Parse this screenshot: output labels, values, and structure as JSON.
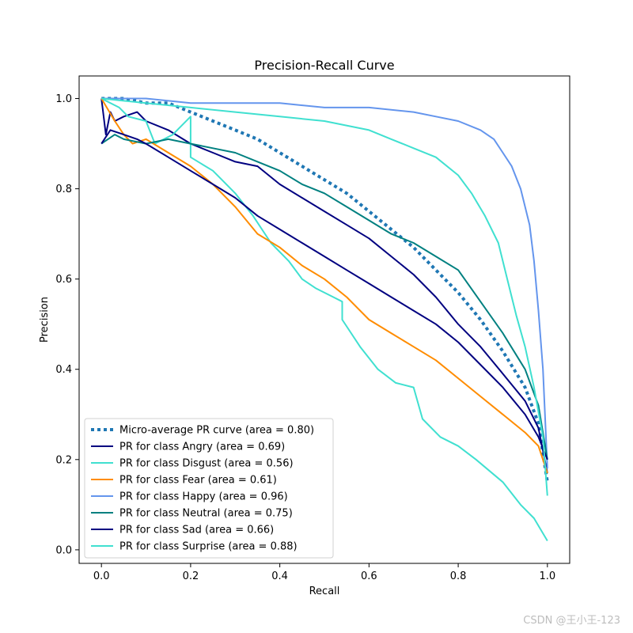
{
  "watermark": "CSDN @王小王-123",
  "chart_data": {
    "type": "line",
    "title": "Precision-Recall Curve",
    "xlabel": "Recall",
    "ylabel": "Precision",
    "xlim": [
      -0.05,
      1.05
    ],
    "ylim": [
      -0.03,
      1.05
    ],
    "xticks": [
      0.0,
      0.2,
      0.4,
      0.6,
      0.8,
      1.0
    ],
    "yticks": [
      0.0,
      0.2,
      0.4,
      0.6,
      0.8,
      1.0
    ],
    "xtick_labels": [
      "0.0",
      "0.2",
      "0.4",
      "0.6",
      "0.8",
      "1.0"
    ],
    "ytick_labels": [
      "0.0",
      "0.2",
      "0.4",
      "0.6",
      "0.8",
      "1.0"
    ],
    "grid": false,
    "legend_position": "lower-left",
    "series": [
      {
        "name": "Micro-average PR curve (area = 0.80)",
        "color": "#1f77b4",
        "dash": "dotted",
        "x": [
          0.0,
          0.05,
          0.1,
          0.15,
          0.2,
          0.25,
          0.3,
          0.35,
          0.4,
          0.45,
          0.5,
          0.55,
          0.6,
          0.65,
          0.7,
          0.75,
          0.8,
          0.85,
          0.9,
          0.95,
          0.98,
          1.0
        ],
        "y": [
          1.0,
          1.0,
          0.99,
          0.99,
          0.97,
          0.95,
          0.93,
          0.91,
          0.88,
          0.85,
          0.82,
          0.79,
          0.75,
          0.71,
          0.67,
          0.62,
          0.57,
          0.51,
          0.44,
          0.36,
          0.28,
          0.15
        ]
      },
      {
        "name": "PR for class Angry (area = 0.69)",
        "color": "#000080",
        "dash": "solid",
        "x": [
          0.0,
          0.01,
          0.02,
          0.03,
          0.05,
          0.08,
          0.1,
          0.15,
          0.2,
          0.25,
          0.3,
          0.35,
          0.4,
          0.45,
          0.5,
          0.55,
          0.6,
          0.65,
          0.7,
          0.75,
          0.8,
          0.85,
          0.9,
          0.95,
          0.98,
          1.0
        ],
        "y": [
          1.0,
          0.92,
          0.97,
          0.95,
          0.96,
          0.97,
          0.95,
          0.93,
          0.9,
          0.88,
          0.86,
          0.85,
          0.81,
          0.78,
          0.75,
          0.72,
          0.69,
          0.65,
          0.61,
          0.56,
          0.5,
          0.45,
          0.39,
          0.33,
          0.27,
          0.17
        ]
      },
      {
        "name": "PR for class Disgust (area = 0.56)",
        "color": "#40e0d0",
        "dash": "solid",
        "x": [
          0.0,
          0.04,
          0.06,
          0.1,
          0.12,
          0.16,
          0.2,
          0.2,
          0.25,
          0.27,
          0.3,
          0.34,
          0.38,
          0.42,
          0.45,
          0.48,
          0.52,
          0.54,
          0.54,
          0.58,
          0.62,
          0.66,
          0.7,
          0.72,
          0.76,
          0.8,
          0.84,
          0.9,
          0.94,
          0.97,
          1.0
        ],
        "y": [
          1.0,
          0.98,
          0.96,
          0.95,
          0.9,
          0.92,
          0.96,
          0.87,
          0.84,
          0.82,
          0.79,
          0.74,
          0.68,
          0.64,
          0.6,
          0.58,
          0.56,
          0.55,
          0.51,
          0.45,
          0.4,
          0.37,
          0.36,
          0.29,
          0.25,
          0.23,
          0.2,
          0.15,
          0.1,
          0.07,
          0.02
        ]
      },
      {
        "name": "PR for class Fear (area = 0.61)",
        "color": "#ff8c00",
        "dash": "solid",
        "x": [
          0.0,
          0.03,
          0.05,
          0.07,
          0.1,
          0.15,
          0.2,
          0.25,
          0.3,
          0.35,
          0.4,
          0.45,
          0.5,
          0.55,
          0.6,
          0.65,
          0.7,
          0.75,
          0.8,
          0.85,
          0.9,
          0.95,
          0.98,
          1.0
        ],
        "y": [
          1.0,
          0.95,
          0.92,
          0.9,
          0.91,
          0.88,
          0.85,
          0.81,
          0.76,
          0.7,
          0.67,
          0.63,
          0.6,
          0.56,
          0.51,
          0.48,
          0.45,
          0.42,
          0.38,
          0.34,
          0.3,
          0.26,
          0.23,
          0.17
        ]
      },
      {
        "name": "PR for class Happy (area = 0.96)",
        "color": "#6495ed",
        "dash": "solid",
        "x": [
          0.0,
          0.1,
          0.2,
          0.3,
          0.4,
          0.5,
          0.6,
          0.7,
          0.75,
          0.8,
          0.85,
          0.88,
          0.9,
          0.92,
          0.94,
          0.96,
          0.97,
          0.98,
          0.99,
          1.0
        ],
        "y": [
          1.0,
          1.0,
          0.99,
          0.99,
          0.99,
          0.98,
          0.98,
          0.97,
          0.96,
          0.95,
          0.93,
          0.91,
          0.88,
          0.85,
          0.8,
          0.72,
          0.64,
          0.53,
          0.4,
          0.18
        ]
      },
      {
        "name": "PR for class Neutral (area = 0.75)",
        "color": "#008080",
        "dash": "solid",
        "x": [
          0.0,
          0.03,
          0.05,
          0.1,
          0.15,
          0.2,
          0.25,
          0.3,
          0.35,
          0.4,
          0.45,
          0.5,
          0.55,
          0.6,
          0.65,
          0.7,
          0.75,
          0.8,
          0.85,
          0.9,
          0.95,
          0.98,
          1.0
        ],
        "y": [
          0.9,
          0.92,
          0.91,
          0.9,
          0.91,
          0.9,
          0.89,
          0.88,
          0.86,
          0.84,
          0.81,
          0.79,
          0.76,
          0.73,
          0.7,
          0.68,
          0.65,
          0.62,
          0.55,
          0.48,
          0.4,
          0.32,
          0.2
        ]
      },
      {
        "name": "PR for class Sad (area = 0.66)",
        "color": "#000080",
        "dash": "solid",
        "x": [
          0.0,
          0.02,
          0.05,
          0.08,
          0.1,
          0.15,
          0.2,
          0.25,
          0.3,
          0.35,
          0.4,
          0.45,
          0.5,
          0.55,
          0.6,
          0.65,
          0.7,
          0.75,
          0.8,
          0.85,
          0.9,
          0.95,
          0.98,
          1.0
        ],
        "y": [
          0.9,
          0.93,
          0.92,
          0.91,
          0.9,
          0.87,
          0.84,
          0.81,
          0.78,
          0.74,
          0.71,
          0.68,
          0.65,
          0.62,
          0.59,
          0.56,
          0.53,
          0.5,
          0.46,
          0.41,
          0.36,
          0.3,
          0.25,
          0.2
        ]
      },
      {
        "name": "PR for class Surprise (area = 0.88)",
        "color": "#40e0d0",
        "dash": "solid",
        "x": [
          0.0,
          0.1,
          0.2,
          0.3,
          0.4,
          0.5,
          0.6,
          0.65,
          0.7,
          0.75,
          0.8,
          0.83,
          0.86,
          0.89,
          0.91,
          0.93,
          0.95,
          0.97,
          0.99,
          1.0
        ],
        "y": [
          1.0,
          0.99,
          0.98,
          0.97,
          0.96,
          0.95,
          0.93,
          0.91,
          0.89,
          0.87,
          0.83,
          0.79,
          0.74,
          0.68,
          0.6,
          0.52,
          0.45,
          0.36,
          0.25,
          0.12
        ]
      }
    ]
  }
}
